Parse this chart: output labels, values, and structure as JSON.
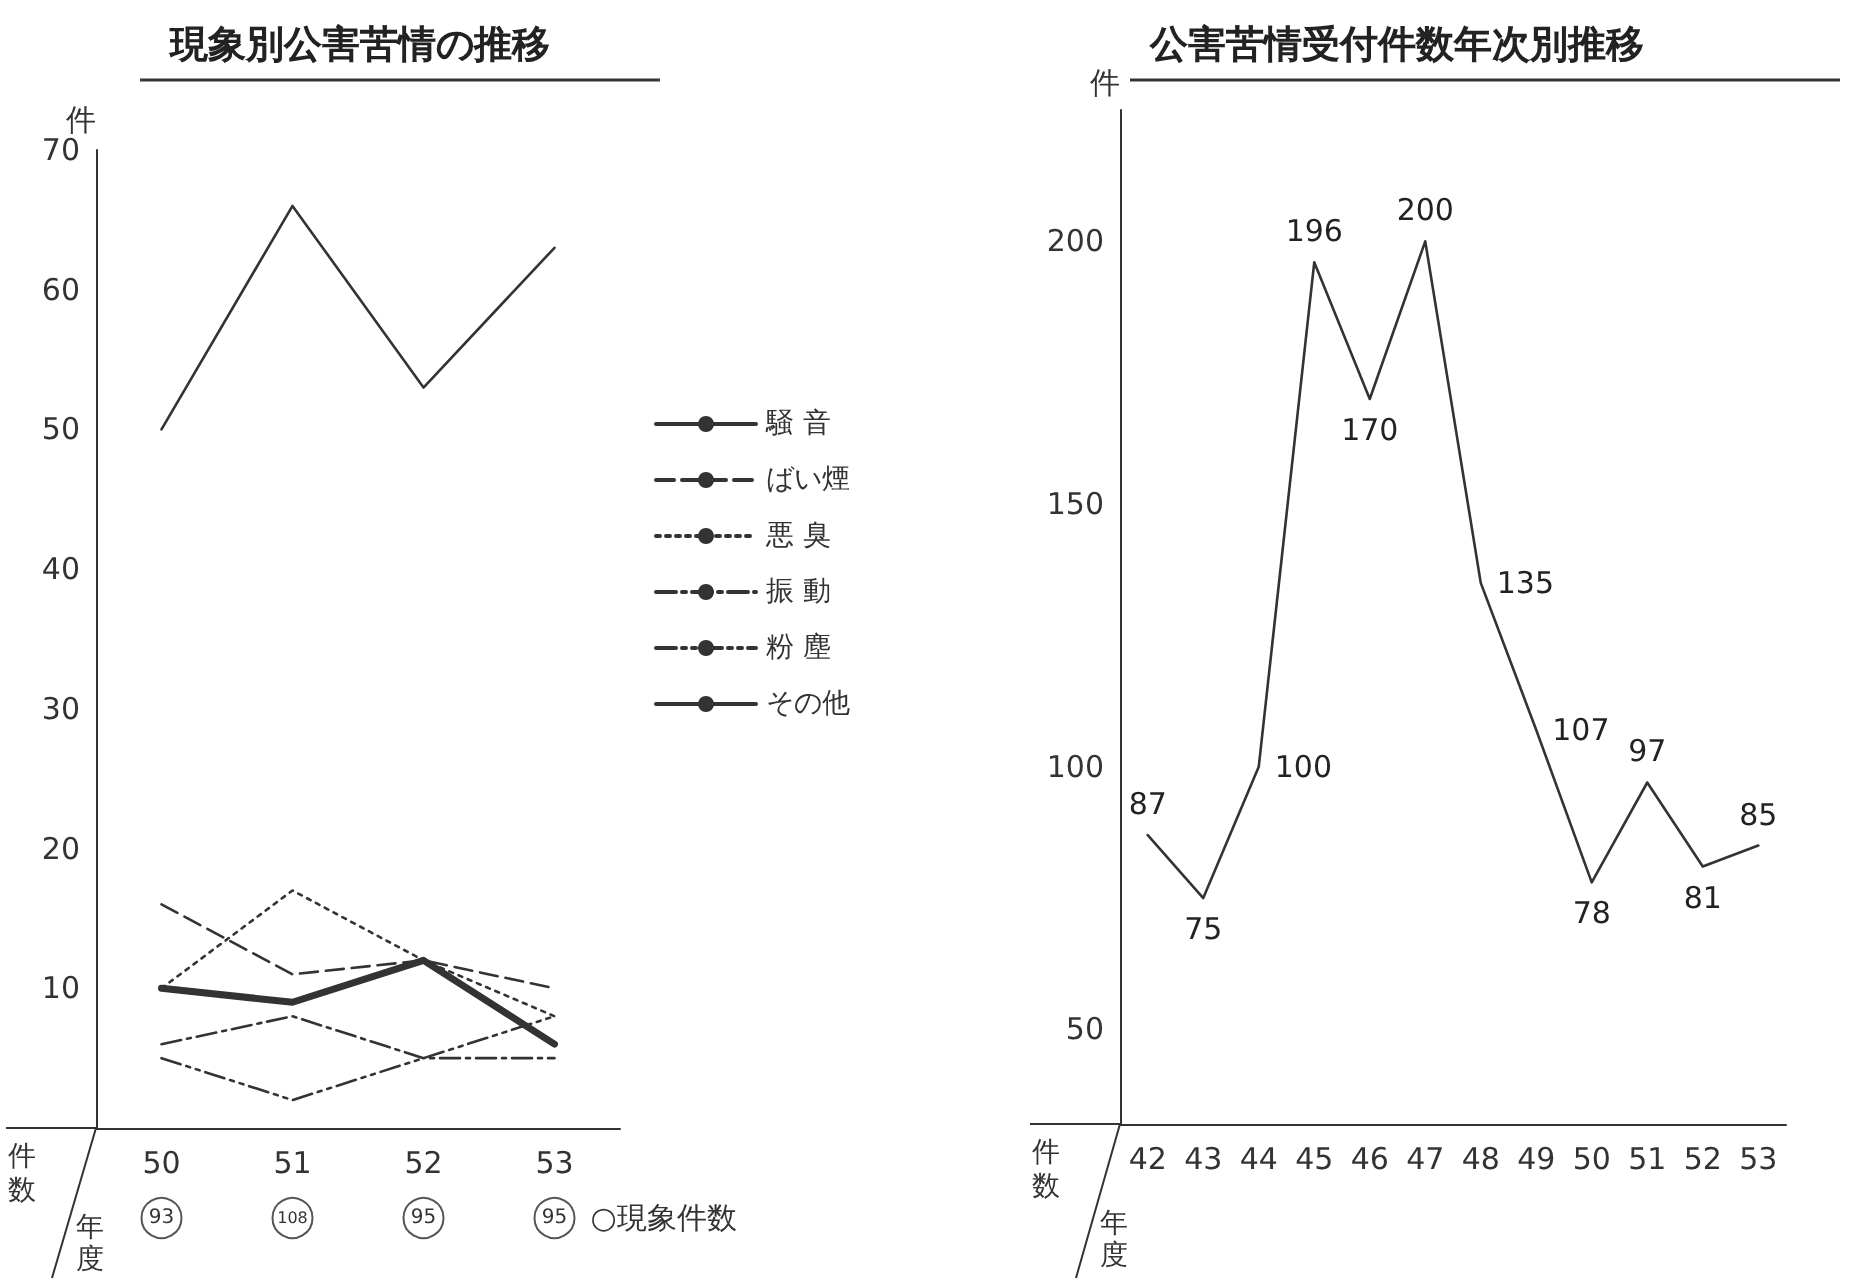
{
  "chart_data": [
    {
      "type": "line",
      "title": "現象別公害苦情の推移",
      "ylabel": "件",
      "xlabel": "年度",
      "categories": [
        "50",
        "51",
        "52",
        "53"
      ],
      "series": [
        {
          "name": "騒 音",
          "color": "#333333",
          "line_style": "solid",
          "values": [
            50,
            66,
            53,
            63
          ]
        },
        {
          "name": "ばい煙",
          "color": "#333333",
          "line_style": "dashed",
          "values": [
            16,
            11,
            12,
            10
          ]
        },
        {
          "name": "悪 臭",
          "color": "#333333",
          "line_style": "dotted",
          "values": [
            10,
            17,
            12,
            8
          ]
        },
        {
          "name": "振 動",
          "color": "#333333",
          "line_style": "dashdot",
          "values": [
            6,
            8,
            5,
            5
          ]
        },
        {
          "name": "粉 塵",
          "color": "#333333",
          "line_style": "dashdotdot",
          "values": [
            5,
            2,
            5,
            8
          ]
        },
        {
          "name": "その他",
          "color": "#333333",
          "line_style": "solid",
          "values": [
            10,
            9,
            12,
            6
          ]
        }
      ],
      "ylim": [
        0,
        70
      ],
      "yticks": [
        10,
        20,
        30,
        40,
        50,
        60,
        70
      ],
      "grid": false,
      "legend": "right",
      "marker": "none",
      "annotations": [
        "93",
        "108",
        "95",
        "95",
        "○現象件数",
        "件数"
      ]
    },
    {
      "type": "line",
      "title": "公害苦情受付件数年次別推移",
      "ylabel": "件",
      "xlabel": "年度",
      "categories": [
        "42",
        "43",
        "44",
        "45",
        "46",
        "47",
        "48",
        "49",
        "50",
        "51",
        "52",
        "53"
      ],
      "series": [
        {
          "color": "#333333",
          "values": [
            87,
            75,
            100,
            196,
            170,
            200,
            135,
            107,
            78,
            97,
            81,
            85
          ]
        }
      ],
      "ylim": [
        32,
        225
      ],
      "yticks": [
        50,
        100,
        150,
        200
      ],
      "grid": false,
      "legend": false,
      "marker": "none",
      "data_labels": true,
      "annotations": [
        "件数"
      ]
    }
  ]
}
